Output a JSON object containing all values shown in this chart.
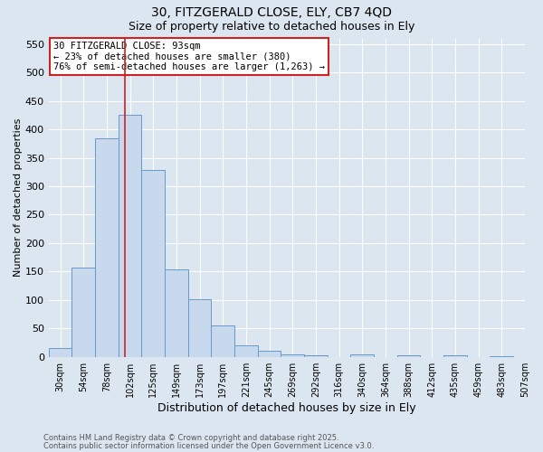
{
  "title1": "30, FITZGERALD CLOSE, ELY, CB7 4QD",
  "title2": "Size of property relative to detached houses in Ely",
  "xlabel": "Distribution of detached houses by size in Ely",
  "ylabel": "Number of detached properties",
  "bar_heights": [
    15,
    157,
    385,
    425,
    328,
    153,
    101,
    55,
    20,
    10,
    5,
    3,
    0,
    4,
    0,
    3,
    0,
    2,
    0,
    1
  ],
  "x_tick_labels": [
    "30sqm",
    "54sqm",
    "78sqm",
    "102sqm",
    "125sqm",
    "149sqm",
    "173sqm",
    "197sqm",
    "221sqm",
    "245sqm",
    "269sqm",
    "292sqm",
    "316sqm",
    "340sqm",
    "364sqm",
    "388sqm",
    "412sqm",
    "435sqm",
    "459sqm",
    "483sqm",
    "507sqm"
  ],
  "bar_color": "#c8d9ee",
  "bar_edge_color": "#6699cc",
  "vline_color": "#cc2222",
  "vline_x_bin": 2.8,
  "ylim": [
    0,
    560
  ],
  "yticks": [
    0,
    50,
    100,
    150,
    200,
    250,
    300,
    350,
    400,
    450,
    500,
    550
  ],
  "annotation_text": "30 FITZGERALD CLOSE: 93sqm\n← 23% of detached houses are smaller (380)\n76% of semi-detached houses are larger (1,263) →",
  "annotation_box_color": "#ffffff",
  "annotation_box_edge_color": "#cc2222",
  "bg_color": "#dce6f0",
  "plot_bg_color": "#dce6f0",
  "grid_color": "#ffffff",
  "footer1": "Contains HM Land Registry data © Crown copyright and database right 2025.",
  "footer2": "Contains public sector information licensed under the Open Government Licence v3.0."
}
